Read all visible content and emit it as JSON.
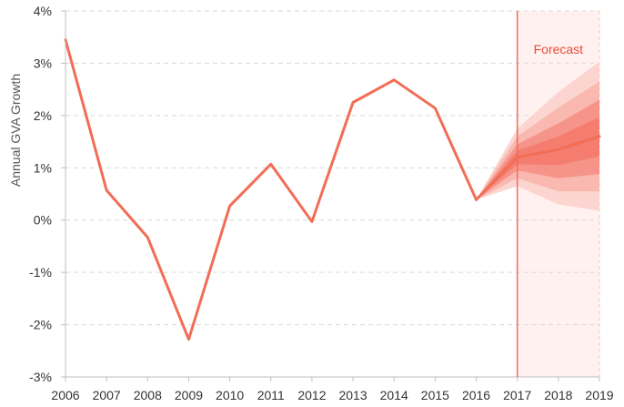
{
  "chart_data": {
    "type": "line",
    "title": "",
    "xlabel": "",
    "ylabel": "Annual  GVA Growth",
    "x": [
      2006,
      2007,
      2008,
      2009,
      2010,
      2011,
      2012,
      2013,
      2014,
      2015,
      2016,
      2017,
      2018,
      2019
    ],
    "x_tick_labels": [
      "2006",
      "2007",
      "2008",
      "2009",
      "2010",
      "2011",
      "2012",
      "2013",
      "2014",
      "2015",
      "2016",
      "2017",
      "2018",
      "2019"
    ],
    "y_tick_labels": [
      "4%",
      "3%",
      "2%",
      "1%",
      "0%",
      "-1%",
      "-2%",
      "-3%"
    ],
    "y_ticks": [
      4,
      3,
      2,
      1,
      0,
      -1,
      -2,
      -3
    ],
    "ylim": [
      -3,
      4
    ],
    "xlim": [
      2006,
      2019
    ],
    "grid": "horizontal-dashed",
    "series": [
      {
        "x": [
          2006,
          2007,
          2008,
          2009,
          2010,
          2011,
          2012,
          2013,
          2014,
          2015,
          2016
        ],
        "values": [
          3.45,
          0.57,
          -0.33,
          -2.28,
          0.27,
          1.07,
          -0.03,
          2.25,
          2.68,
          2.14,
          0.39
        ]
      },
      {
        "x": [
          2016,
          2017,
          2018,
          2019
        ],
        "values": [
          0.39,
          1.2,
          1.35,
          1.6
        ]
      }
    ],
    "fan_bands": [
      {
        "x": [
          2016,
          2017,
          2018,
          2019
        ],
        "low": [
          0.39,
          0.65,
          0.3,
          0.18
        ],
        "high": [
          0.39,
          1.75,
          2.45,
          3.03
        ]
      },
      {
        "x": [
          2016,
          2017,
          2018,
          2019
        ],
        "low": [
          0.39,
          0.8,
          0.55,
          0.55
        ],
        "high": [
          0.39,
          1.6,
          2.15,
          2.65
        ]
      },
      {
        "x": [
          2016,
          2017,
          2018,
          2019
        ],
        "low": [
          0.39,
          0.95,
          0.8,
          0.88
        ],
        "high": [
          0.39,
          1.45,
          1.85,
          2.3
        ]
      },
      {
        "x": [
          2016,
          2017,
          2018,
          2019
        ],
        "low": [
          0.39,
          1.07,
          1.05,
          1.22
        ],
        "high": [
          0.39,
          1.33,
          1.6,
          1.97
        ]
      }
    ],
    "forecast": {
      "label": "Forecast",
      "start_x": 2017,
      "end_x": 2019
    },
    "colors": {
      "line": "#f26d55",
      "forecast_line": "#f06a5a",
      "forecast_fill": "#fff1f0",
      "forecast_text": "#ea4b3a",
      "band_fills": [
        "#fcd5d0",
        "#f9b8b0",
        "#f79489",
        "#f47d70"
      ],
      "grid": "#d9d9d9",
      "axis": "#bfbfbf",
      "tick_text": "#333333"
    }
  }
}
